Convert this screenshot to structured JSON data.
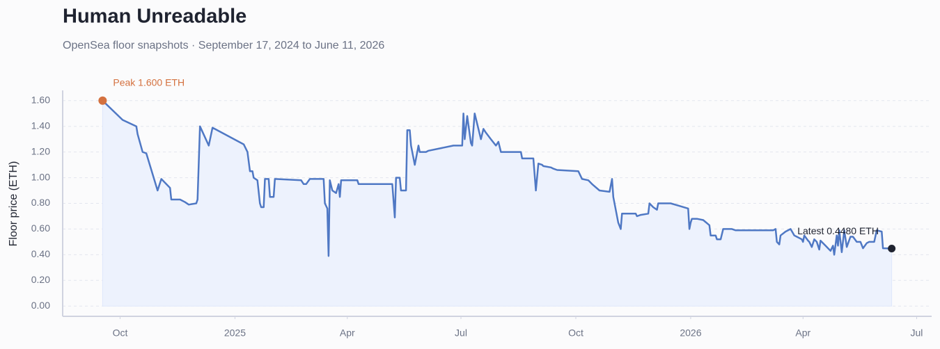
{
  "chart_data": {
    "type": "area-line",
    "title": "Human Unreadable",
    "subtitle": "OpenSea floor snapshots · September 17, 2024 to June 11, 2026",
    "y_label": "Floor price (ETH)",
    "peak_label": "Peak 1.600 ETH",
    "latest_label": "Latest 0.4480 ETH",
    "color": "#4f78c4",
    "area_color": "#edf2fd",
    "peak_color": "#d4713f",
    "latest_color": "#1f2330",
    "grid": true,
    "xlim": [
      "2024-08-16",
      "2026-07-13"
    ],
    "xticks": [
      {
        "value": "2024-10-01",
        "label": "Oct"
      },
      {
        "value": "2025-01-01",
        "label": "2025"
      },
      {
        "value": "2025-04-01",
        "label": "Apr"
      },
      {
        "value": "2025-07-01",
        "label": "Jul"
      },
      {
        "value": "2025-10-01",
        "label": "Oct"
      },
      {
        "value": "2026-01-01",
        "label": "2026"
      },
      {
        "value": "2026-04-01",
        "label": "Apr"
      },
      {
        "value": "2026-07-01",
        "label": "Jul"
      }
    ],
    "ylim": [
      -0.08,
      1.68
    ],
    "yticks": [
      {
        "value": 0,
        "label": "0.00"
      },
      {
        "value": 0.2,
        "label": "0.20"
      },
      {
        "value": 0.4,
        "label": "0.40"
      },
      {
        "value": 0.6,
        "label": "0.60"
      },
      {
        "value": 0.8,
        "label": "0.80"
      },
      {
        "value": 1,
        "label": "1.00"
      },
      {
        "value": 1.2,
        "label": "1.20"
      },
      {
        "value": 1.4,
        "label": "1.40"
      },
      {
        "value": 1.6,
        "label": "1.60"
      }
    ],
    "x": [
      "2024-09-17",
      "2024-10-03",
      "2024-10-14",
      "2024-10-15",
      "2024-10-19",
      "2024-10-22",
      "2024-10-31",
      "2024-11-03",
      "2024-11-10",
      "2024-11-11",
      "2024-11-18",
      "2024-11-22",
      "2024-11-25",
      "2024-12-01",
      "2024-12-02",
      "2024-12-04",
      "2024-12-11",
      "2024-12-14",
      "2025-01-08",
      "2025-01-11",
      "2025-01-13",
      "2025-01-15",
      "2025-01-16",
      "2025-01-19",
      "2025-01-21",
      "2025-01-22",
      "2025-01-24",
      "2025-01-25",
      "2025-01-28",
      "2025-01-29",
      "2025-02-01",
      "2025-02-02",
      "2025-02-23",
      "2025-02-25",
      "2025-02-27",
      "2025-03-02",
      "2025-03-13",
      "2025-03-14",
      "2025-03-16",
      "2025-03-17",
      "2025-03-18",
      "2025-03-20",
      "2025-03-23",
      "2025-03-25",
      "2025-03-26",
      "2025-03-27",
      "2025-04-09",
      "2025-04-10",
      "2025-05-07",
      "2025-05-09",
      "2025-05-10",
      "2025-05-13",
      "2025-05-14",
      "2025-05-18",
      "2025-05-19",
      "2025-05-21",
      "2025-05-22",
      "2025-05-25",
      "2025-05-28",
      "2025-05-29",
      "2025-06-03",
      "2025-06-05",
      "2025-06-25",
      "2025-07-02",
      "2025-07-03",
      "2025-07-04",
      "2025-07-06",
      "2025-07-09",
      "2025-07-10",
      "2025-07-12",
      "2025-07-17",
      "2025-07-19",
      "2025-07-21",
      "2025-07-25",
      "2025-07-29",
      "2025-07-31",
      "2025-08-02",
      "2025-08-18",
      "2025-08-19",
      "2025-08-28",
      "2025-08-30",
      "2025-09-01",
      "2025-09-04",
      "2025-09-05",
      "2025-09-11",
      "2025-09-13",
      "2025-09-16",
      "2025-10-03",
      "2025-10-06",
      "2025-10-11",
      "2025-10-14",
      "2025-10-20",
      "2025-10-28",
      "2025-10-30",
      "2025-10-31",
      "2025-11-04",
      "2025-11-06",
      "2025-11-07",
      "2025-11-18",
      "2025-11-19",
      "2025-11-22",
      "2025-11-28",
      "2025-11-29",
      "2025-12-02",
      "2025-12-05",
      "2025-12-06",
      "2025-12-16",
      "2025-12-23",
      "2025-12-30",
      "2025-12-31",
      "2026-01-01",
      "2026-01-02",
      "2026-01-06",
      "2026-01-11",
      "2026-01-16",
      "2026-01-17",
      "2026-01-21",
      "2026-01-22",
      "2026-01-25",
      "2026-01-27",
      "2026-02-03",
      "2026-02-06",
      "2026-03-08",
      "2026-03-10",
      "2026-03-11",
      "2026-03-13",
      "2026-03-14",
      "2026-03-18",
      "2026-03-22",
      "2026-03-25",
      "2026-03-31",
      "2026-04-01",
      "2026-04-02",
      "2026-04-05",
      "2026-04-06",
      "2026-04-08",
      "2026-04-10",
      "2026-04-12",
      "2026-04-14",
      "2026-04-15",
      "2026-04-19",
      "2026-04-21",
      "2026-04-23",
      "2026-04-25",
      "2026-04-26",
      "2026-04-28",
      "2026-04-29",
      "2026-04-30",
      "2026-05-02",
      "2026-05-04",
      "2026-05-06",
      "2026-05-09",
      "2026-05-11",
      "2026-05-14",
      "2026-05-17",
      "2026-05-19",
      "2026-05-22",
      "2026-05-24",
      "2026-05-28",
      "2026-05-30",
      "2026-06-03",
      "2026-06-04",
      "2026-06-11"
    ],
    "values": [
      1.6,
      1.45,
      1.4,
      1.34,
      1.2,
      1.19,
      0.9,
      0.99,
      0.92,
      0.83,
      0.83,
      0.81,
      0.79,
      0.8,
      0.83,
      1.4,
      1.25,
      1.39,
      1.26,
      1.2,
      1.05,
      1.05,
      1.0,
      0.98,
      0.8,
      0.77,
      0.77,
      0.99,
      0.99,
      0.85,
      0.85,
      0.99,
      0.98,
      0.95,
      0.95,
      0.99,
      0.99,
      0.8,
      0.76,
      0.39,
      0.98,
      0.9,
      0.88,
      0.95,
      0.85,
      0.98,
      0.98,
      0.95,
      0.95,
      0.69,
      1.0,
      1.0,
      0.9,
      0.9,
      1.37,
      1.37,
      1.25,
      1.1,
      1.25,
      1.2,
      1.2,
      1.21,
      1.25,
      1.25,
      1.5,
      1.3,
      1.48,
      1.27,
      1.25,
      1.5,
      1.3,
      1.38,
      1.35,
      1.3,
      1.25,
      1.28,
      1.2,
      1.2,
      1.15,
      1.15,
      0.9,
      1.11,
      1.1,
      1.09,
      1.08,
      1.07,
      1.06,
      1.05,
      0.99,
      0.98,
      0.95,
      0.9,
      0.89,
      0.99,
      0.85,
      0.65,
      0.6,
      0.72,
      0.72,
      0.7,
      0.71,
      0.72,
      0.8,
      0.77,
      0.75,
      0.8,
      0.8,
      0.78,
      0.76,
      0.6,
      0.65,
      0.68,
      0.68,
      0.67,
      0.63,
      0.55,
      0.55,
      0.52,
      0.52,
      0.6,
      0.6,
      0.59,
      0.59,
      0.6,
      0.5,
      0.48,
      0.55,
      0.58,
      0.6,
      0.55,
      0.52,
      0.5,
      0.55,
      0.51,
      0.5,
      0.46,
      0.52,
      0.5,
      0.44,
      0.51,
      0.47,
      0.45,
      0.43,
      0.47,
      0.4,
      0.55,
      0.47,
      0.59,
      0.42,
      0.59,
      0.46,
      0.54,
      0.54,
      0.5,
      0.5,
      0.45,
      0.49,
      0.5,
      0.5,
      0.59,
      0.58,
      0.45,
      0.448
    ]
  }
}
